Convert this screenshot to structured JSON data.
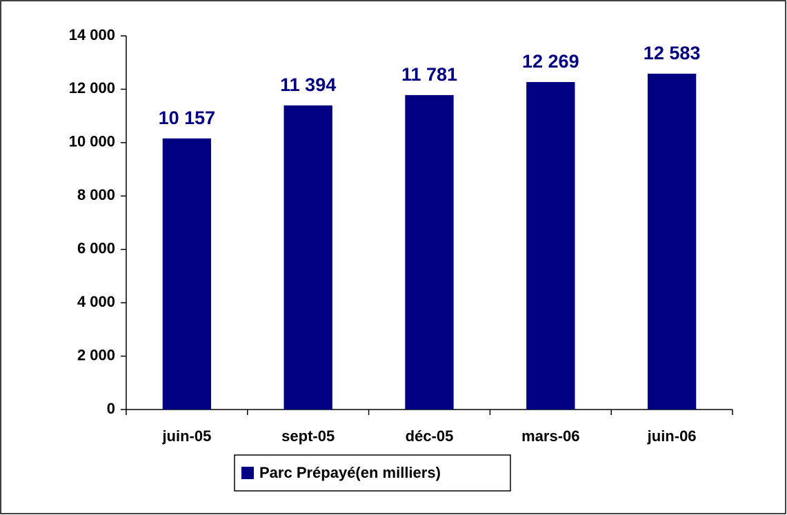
{
  "chart_data": {
    "type": "bar",
    "categories": [
      "juin-05",
      "sept-05",
      "déc-05",
      "mars-06",
      "juin-06"
    ],
    "series": [
      {
        "name": "Parc Prépayé(en milliers)",
        "color": "#000080",
        "values": [
          10157,
          11394,
          11781,
          12269,
          12583
        ],
        "value_labels": [
          "10 157",
          "11 394",
          "11 781",
          "12 269",
          "12 583"
        ]
      }
    ],
    "ylim": [
      0,
      14000
    ],
    "yticks": [
      0,
      {
        "value": 2000,
        "label": "2 000"
      },
      {
        "value": 4000,
        "label": "4 000"
      },
      {
        "value": 6000,
        "label": "6 000"
      },
      {
        "value": 8000,
        "label": "8 000"
      },
      {
        "value": 10000,
        "label": "10 000"
      },
      {
        "value": 12000,
        "label": "12 000"
      },
      {
        "value": 14000,
        "label": "14 000"
      }
    ],
    "grid": false,
    "legend": "bottom"
  }
}
